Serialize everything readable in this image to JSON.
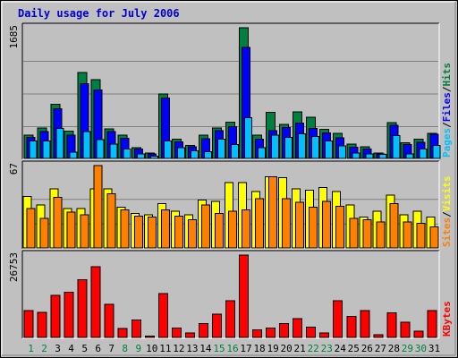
{
  "chart_data": {
    "type": "bar",
    "title": "Daily usage for July 2006",
    "days": [
      "1",
      "2",
      "3",
      "4",
      "5",
      "6",
      "7",
      "8",
      "9",
      "10",
      "11",
      "12",
      "13",
      "14",
      "15",
      "16",
      "17",
      "18",
      "19",
      "20",
      "21",
      "22",
      "23",
      "24",
      "25",
      "26",
      "27",
      "28",
      "29",
      "30",
      "31"
    ],
    "weekend_days": [
      "1",
      "2",
      "8",
      "9",
      "15",
      "16",
      "22",
      "23",
      "29",
      "30"
    ],
    "colors": {
      "background": "#c0c0c0",
      "plot_bg": "#c0c0c0",
      "hits": "#008040",
      "files": "#0000ff",
      "pages": "#00c0ff",
      "visits": "#ffff00",
      "sites": "#ff8000",
      "kbytes": "#ff0000",
      "title": "#0000cc",
      "weekend": "#008040",
      "weekday": "#000000"
    },
    "panels": [
      {
        "max_label": "1685",
        "ymax": 1685,
        "legend": [
          "Pages",
          "/",
          "Files",
          "/",
          "Hits"
        ],
        "series": [
          {
            "name": "Hits",
            "values": [
              300,
              390,
              700,
              350,
              1110,
              1015,
              380,
              300,
              140,
              70,
              830,
              250,
              170,
              300,
              390,
              470,
              1685,
              300,
              595,
              440,
              600,
              530,
              375,
              325,
              185,
              150,
              70,
              460,
              200,
              250,
              325
            ]
          },
          {
            "name": "Files",
            "values": [
              270,
              345,
              640,
              300,
              965,
              885,
              345,
              260,
              120,
              55,
              780,
              215,
              150,
              255,
              355,
              410,
              1430,
              250,
              355,
              400,
              455,
              385,
              330,
              265,
              145,
              120,
              55,
              425,
              180,
              210,
              310
            ]
          },
          {
            "name": "Pages",
            "values": [
              225,
              225,
              385,
              80,
              345,
              245,
              185,
              120,
              60,
              30,
              225,
              140,
              100,
              85,
              250,
              180,
              525,
              140,
              300,
              270,
              320,
              280,
              225,
              160,
              70,
              60,
              50,
              295,
              60,
              120,
              170
            ]
          }
        ]
      },
      {
        "max_label": "67",
        "ymax": 67,
        "legend": [
          "Sites",
          "/",
          "Visits"
        ],
        "series": [
          {
            "name": "Visits",
            "values": [
              42,
              35,
              48,
              32,
              32,
              48,
              48,
              33,
              28,
              27,
              36,
              30,
              27,
              39,
              38,
              53,
              53,
              46,
              58,
              57,
              48,
              47,
              49,
              46,
              35,
              25,
              30,
              43,
              27,
              30,
              25
            ]
          },
          {
            "name": "Sites",
            "values": [
              32,
              24,
              41,
              29,
              27,
              67,
              44,
              31,
              26,
              25,
              31,
              26,
              23,
              35,
              28,
              30,
              31,
              40,
              58,
              40,
              37,
              33,
              38,
              34,
              24,
              23,
              21,
              36,
              21,
              20,
              17
            ]
          }
        ]
      },
      {
        "max_label": "26753",
        "ymax": 26753,
        "legend": [
          "KBytes"
        ],
        "series": [
          {
            "name": "KBytes",
            "values": [
              8700,
              8100,
              13700,
              14700,
              18700,
              22900,
              10800,
              2900,
              5600,
              400,
              14300,
              3000,
              1500,
              4500,
              7500,
              11900,
              26753,
              2500,
              3000,
              4500,
              6100,
              3400,
              1500,
              11900,
              6800,
              8700,
              800,
              8000,
              5000,
              2000,
              8700
            ]
          }
        ]
      }
    ]
  }
}
